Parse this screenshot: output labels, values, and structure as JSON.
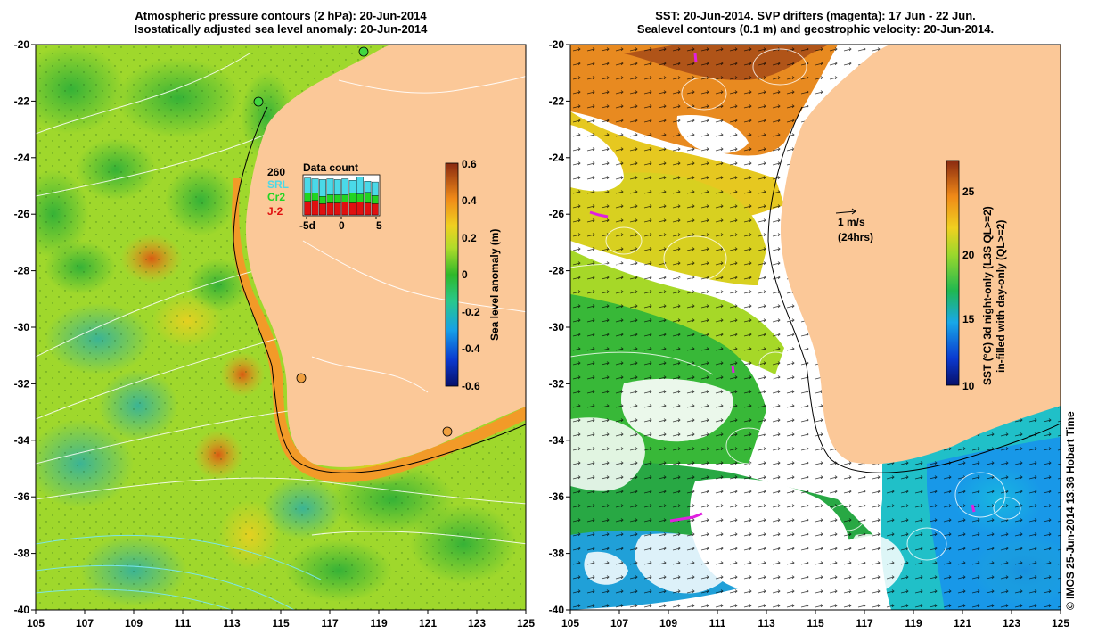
{
  "left_panel": {
    "title_line1": "Atmospheric pressure contours (2 hPa): 20-Jun-2014",
    "title_line2": "Isostatically adjusted sea level anomaly: 20-Jun-2014",
    "lat_ticks": [
      "-20",
      "-22",
      "-24",
      "-26",
      "-28",
      "-30",
      "-32",
      "-34",
      "-36",
      "-38",
      "-40"
    ],
    "lon_ticks": [
      "105",
      "107",
      "109",
      "111",
      "113",
      "115",
      "117",
      "119",
      "121",
      "123",
      "125"
    ],
    "colorbar": {
      "label": "Sea level anomaly (m)",
      "ticks": [
        "0.6",
        "0.4",
        "0.2",
        "0",
        "-0.2",
        "-0.4",
        "-0.6"
      ]
    },
    "data_count": {
      "title": "Data count",
      "legend": [
        {
          "label": "260",
          "color": "#000000"
        },
        {
          "label": "SRL",
          "color": "#4ad9e8"
        },
        {
          "label": "Cr2",
          "color": "#22d422"
        },
        {
          "label": "J-2",
          "color": "#e01010"
        }
      ],
      "x_ticks": [
        "-5d",
        "0",
        "5"
      ],
      "bars": [
        {
          "srl": 0.38,
          "cr2": 0.2,
          "j2": 0.34
        },
        {
          "srl": 0.36,
          "cr2": 0.18,
          "j2": 0.36
        },
        {
          "srl": 0.42,
          "cr2": 0.18,
          "j2": 0.28
        },
        {
          "srl": 0.4,
          "cr2": 0.2,
          "j2": 0.3
        },
        {
          "srl": 0.38,
          "cr2": 0.2,
          "j2": 0.3
        },
        {
          "srl": 0.4,
          "cr2": 0.18,
          "j2": 0.32
        },
        {
          "srl": 0.32,
          "cr2": 0.24,
          "j2": 0.3
        },
        {
          "srl": 0.42,
          "cr2": 0.2,
          "j2": 0.32
        },
        {
          "srl": 0.28,
          "cr2": 0.26,
          "j2": 0.3
        },
        {
          "srl": 0.34,
          "cr2": 0.2,
          "j2": 0.28
        }
      ]
    }
  },
  "right_panel": {
    "title_line1": "SST: 20-Jun-2014. SVP drifters (magenta): 17 Jun - 22 Jun.",
    "title_line2": "Sealevel contours (0.1 m) and geostrophic velocity: 20-Jun-2014.",
    "lat_ticks": [
      "-20",
      "-22",
      "-24",
      "-26",
      "-28",
      "-30",
      "-32",
      "-34",
      "-36",
      "-38",
      "-40"
    ],
    "lon_ticks": [
      "105",
      "107",
      "109",
      "111",
      "113",
      "115",
      "117",
      "119",
      "121",
      "123",
      "125"
    ],
    "scale_label_1": "1 m/s",
    "scale_label_2": "(24hrs)",
    "colorbar": {
      "label_line1": "SST (°C) 3d night-only (L3S QL>=2)",
      "label_line2": "in-filled with day-only (QL>=2)",
      "ticks": [
        "25",
        "20",
        "15",
        "10"
      ]
    }
  },
  "credit": "© IMOS 25-Jun-2014 13:36 Hobart Time",
  "colors": {
    "land": "#fbc898",
    "ocean_green": "#5cc832",
    "ocean_light": "#9fd82c",
    "shelf_orange": "#f29a28",
    "coast_line": "#000000",
    "drifter": "#e020e0"
  }
}
